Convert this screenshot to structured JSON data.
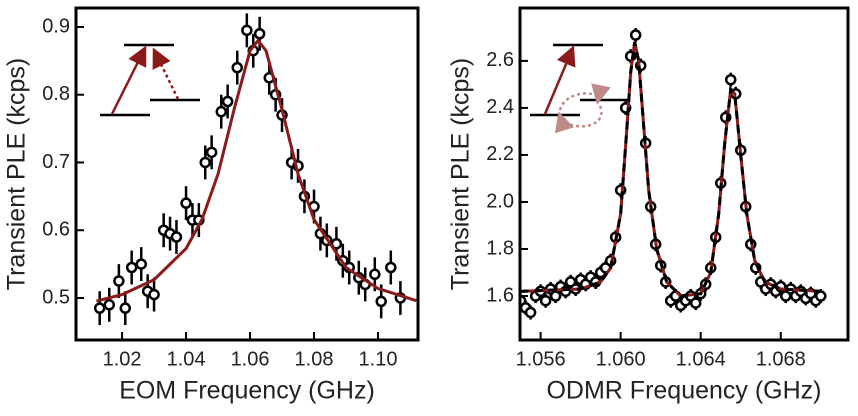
{
  "chart_data": [
    {
      "type": "scatter",
      "x_label": "EOM Frequency (GHz)",
      "y_label": "Transient PLE (kcps)",
      "xlim": [
        1.0056,
        1.1125
      ],
      "ylim": [
        0.438,
        0.928
      ],
      "xticks": [
        1.02,
        1.04,
        1.06,
        1.08,
        {
          "value": 1.1,
          "label": "1.10"
        }
      ],
      "yticks": [
        0.5,
        0.6,
        0.7,
        0.8,
        0.9
      ],
      "series": [
        {
          "color": "#000000",
          "error": 0.025,
          "x": [
            1.013,
            1.016,
            1.019,
            1.021,
            1.023,
            1.026,
            1.028,
            1.03,
            1.033,
            1.035,
            1.037,
            1.04,
            1.042,
            1.044,
            1.046,
            1.048,
            1.051,
            1.053,
            1.056,
            1.059,
            1.061,
            1.063,
            1.066,
            1.068,
            1.07,
            1.073,
            1.075,
            1.077,
            1.08,
            1.082,
            1.084,
            1.087,
            1.089,
            1.091,
            1.094,
            1.096,
            1.099,
            1.101,
            1.104,
            1.107
          ],
          "values": [
            0.485,
            0.49,
            0.525,
            0.485,
            0.545,
            0.55,
            0.51,
            0.505,
            0.6,
            0.595,
            0.59,
            0.64,
            0.615,
            0.615,
            0.7,
            0.715,
            0.775,
            0.79,
            0.84,
            0.895,
            0.865,
            0.89,
            0.825,
            0.8,
            0.77,
            0.7,
            0.695,
            0.65,
            0.635,
            0.595,
            0.585,
            0.58,
            0.555,
            0.545,
            0.53,
            0.52,
            0.535,
            0.495,
            0.545,
            0.5
          ]
        },
        {
          "color": "#8b1a1a",
          "line": true,
          "x": [
            1.012,
            1.02,
            1.03,
            1.04,
            1.045,
            1.05,
            1.055,
            1.06,
            1.0625,
            1.065,
            1.07,
            1.075,
            1.08,
            1.09,
            1.1,
            1.112
          ],
          "values": [
            0.4955,
            0.505,
            0.527,
            0.573,
            0.616,
            0.683,
            0.778,
            0.865,
            0.88,
            0.865,
            0.778,
            0.683,
            0.616,
            0.545,
            0.514,
            0.496
          ]
        }
      ]
    },
    {
      "type": "scatter",
      "x_label": "ODMR Frequency (GHz)",
      "y_label": "Transient PLE (kcps)",
      "xlim": [
        1.05497,
        1.07136
      ],
      "ylim": [
        1.413,
        2.825
      ],
      "xticks": [
        1.056,
        {
          "value": 1.06,
          "label": "1.060"
        },
        1.064,
        1.068
      ],
      "yticks": [
        1.6,
        1.8,
        {
          "value": 2,
          "label": "2.0"
        },
        2.2,
        2.4,
        2.6
      ],
      "series": [
        {
          "color": "#000000",
          "error": 0.03,
          "x": [
            1.055,
            1.05525,
            1.0555,
            1.05575,
            1.056,
            1.05625,
            1.0565,
            1.05675,
            1.057,
            1.05725,
            1.0575,
            1.05775,
            1.058,
            1.05825,
            1.0585,
            1.05875,
            1.059,
            1.05925,
            1.0595,
            1.05975,
            1.06,
            1.06025,
            1.0605,
            1.06075,
            1.061,
            1.06125,
            1.0615,
            1.06175,
            1.062,
            1.06225,
            1.0625,
            1.06275,
            1.063,
            1.06325,
            1.0635,
            1.06375,
            1.064,
            1.06425,
            1.0645,
            1.06475,
            1.065,
            1.06525,
            1.0655,
            1.06575,
            1.066,
            1.06625,
            1.0665,
            1.06675,
            1.067,
            1.06725,
            1.0675,
            1.06775,
            1.068,
            1.06825,
            1.0685,
            1.06875,
            1.069,
            1.06925,
            1.0695,
            1.06975,
            1.07
          ],
          "values": [
            1.58,
            1.55,
            1.53,
            1.6,
            1.62,
            1.58,
            1.63,
            1.6,
            1.64,
            1.62,
            1.66,
            1.63,
            1.67,
            1.65,
            1.68,
            1.66,
            1.7,
            1.72,
            1.75,
            1.85,
            2.05,
            2.4,
            2.62,
            2.71,
            2.58,
            2.25,
            1.98,
            1.82,
            1.73,
            1.66,
            1.58,
            1.6,
            1.56,
            1.58,
            1.6,
            1.57,
            1.61,
            1.65,
            1.72,
            1.85,
            2.08,
            2.36,
            2.52,
            2.46,
            2.22,
            1.98,
            1.82,
            1.72,
            1.66,
            1.63,
            1.65,
            1.62,
            1.64,
            1.6,
            1.63,
            1.6,
            1.62,
            1.59,
            1.61,
            1.58,
            1.6
          ]
        },
        {
          "color": "#8b1a1a",
          "line": true,
          "dash_color": "#000000",
          "x": [
            1.055,
            1.058,
            1.059,
            1.0595,
            1.06,
            1.0603,
            1.0605,
            1.0607,
            1.0609,
            1.0611,
            1.0614,
            1.0618,
            1.0623,
            1.063,
            1.064,
            1.0645,
            1.0649,
            1.0652,
            1.0655,
            1.0657,
            1.066,
            1.0663,
            1.0667,
            1.0672,
            1.068,
            1.07
          ],
          "values": [
            1.62,
            1.63,
            1.66,
            1.72,
            1.95,
            2.3,
            2.55,
            2.68,
            2.6,
            2.38,
            2.05,
            1.8,
            1.66,
            1.6,
            1.61,
            1.7,
            1.95,
            2.25,
            2.48,
            2.46,
            2.2,
            1.95,
            1.75,
            1.66,
            1.63,
            1.62
          ]
        }
      ]
    }
  ]
}
